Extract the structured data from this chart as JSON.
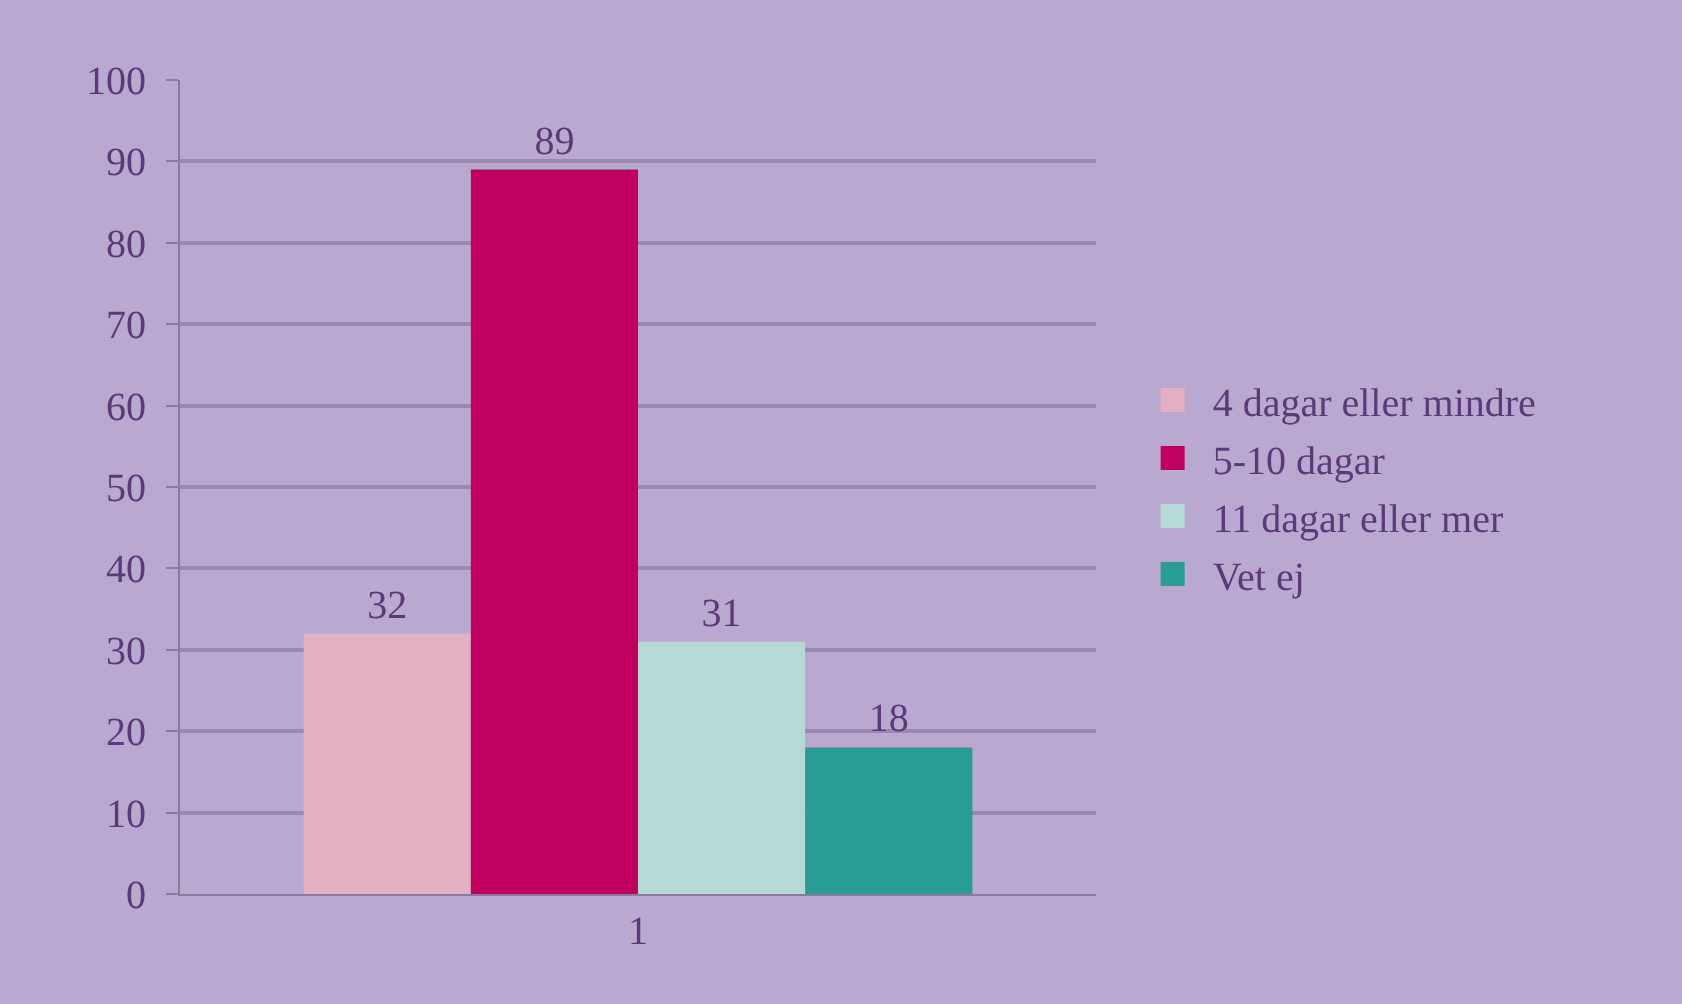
{
  "chart_data": {
    "type": "bar",
    "categories": [
      "1"
    ],
    "series": [
      {
        "name": "4 dagar eller mindre",
        "color": "#e4b0c4",
        "values": [
          32
        ]
      },
      {
        "name": "5-10 dagar",
        "color": "#c0005e",
        "values": [
          89
        ]
      },
      {
        "name": "11 dagar eller mer",
        "color": "#b6d8d6",
        "values": [
          31
        ]
      },
      {
        "name": "Vet ej",
        "color": "#279d93",
        "values": [
          18
        ]
      }
    ],
    "ylim": [
      0,
      100
    ],
    "yticks": [
      0,
      10,
      20,
      30,
      40,
      50,
      60,
      70,
      80,
      90,
      100
    ],
    "grid": "y",
    "legend": "right",
    "data_labels": true
  }
}
